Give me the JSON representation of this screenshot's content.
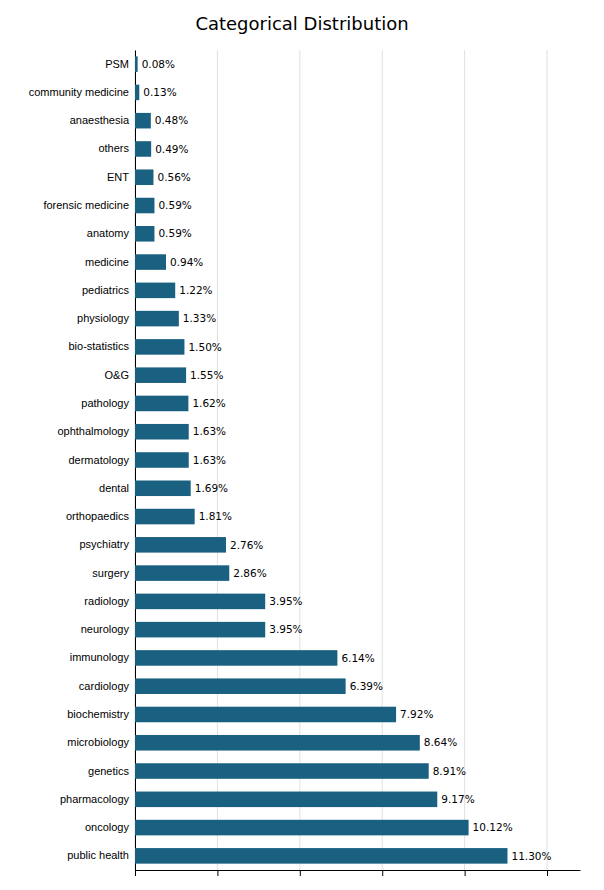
{
  "chart_data": {
    "type": "bar",
    "orientation": "horizontal",
    "title": "Categorical Distribution",
    "categories": [
      "PSM",
      "community medicine",
      "anaesthesia",
      "others",
      "ENT",
      "forensic medicine",
      "anatomy",
      "medicine",
      "pediatrics",
      "physiology",
      "bio-statistics",
      "O&G",
      "pathology",
      "ophthalmology",
      "dermatology",
      "dental",
      "orthopaedics",
      "psychiatry",
      "surgery",
      "radiology",
      "neurology",
      "immunology",
      "cardiology",
      "biochemistry",
      "microbiology",
      "genetics",
      "pharmacology",
      "oncology",
      "public health"
    ],
    "values": [
      0.08,
      0.13,
      0.48,
      0.49,
      0.56,
      0.59,
      0.59,
      0.94,
      1.22,
      1.33,
      1.5,
      1.55,
      1.62,
      1.63,
      1.63,
      1.69,
      1.81,
      2.76,
      2.86,
      3.95,
      3.95,
      6.14,
      6.39,
      7.92,
      8.64,
      8.91,
      9.17,
      10.12,
      11.3
    ],
    "value_labels": [
      "0.08%",
      "0.13%",
      "0.48%",
      "0.49%",
      "0.56%",
      "0.59%",
      "0.59%",
      "0.94%",
      "1.22%",
      "1.33%",
      "1.50%",
      "1.55%",
      "1.62%",
      "1.63%",
      "1.63%",
      "1.69%",
      "1.81%",
      "2.76%",
      "2.86%",
      "3.95%",
      "3.95%",
      "6.14%",
      "6.39%",
      "7.92%",
      "8.64%",
      "8.91%",
      "9.17%",
      "10.12%",
      "11.30%"
    ],
    "color": "#1a6080",
    "xlim": [
      0,
      13.5
    ],
    "xticks": [
      0,
      2.5,
      5.0,
      7.5,
      10.0,
      12.5
    ],
    "grid": true,
    "data_labels": true,
    "tick_labels": "y"
  }
}
